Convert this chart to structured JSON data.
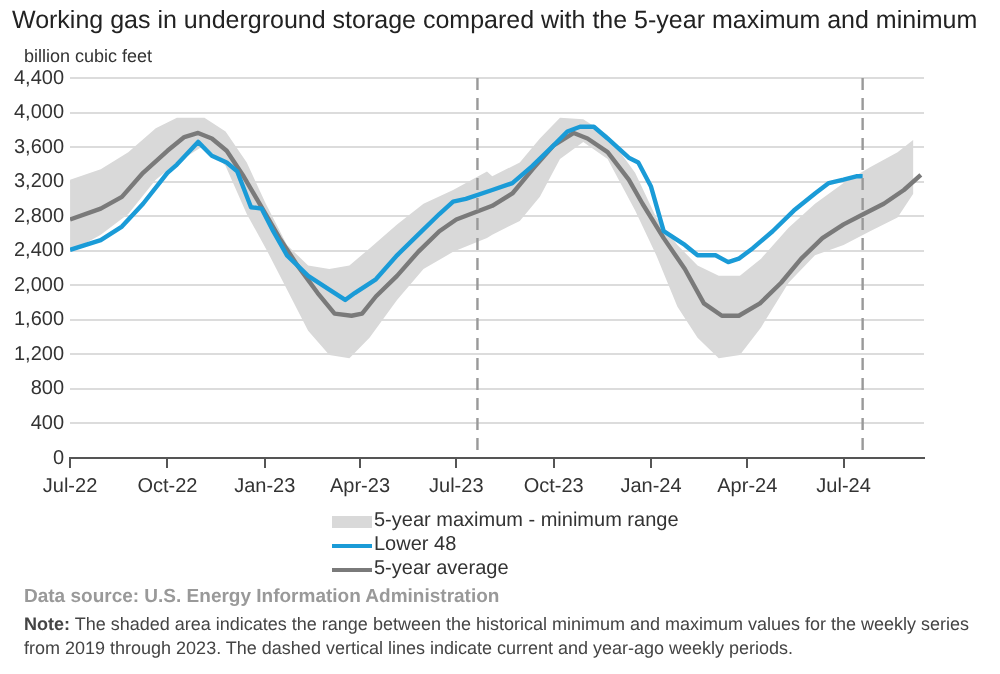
{
  "chart_data": {
    "type": "line",
    "title": "Working gas in underground  storage compared with the 5-year maximum and minimum",
    "ylabel": "billion cubic feet",
    "xlim": [
      "2022-07-01",
      "2024-09-15"
    ],
    "xticks": [
      {
        "value": "2022-07-01",
        "label": "Jul-22"
      },
      {
        "value": "2022-10-01",
        "label": "Oct-22"
      },
      {
        "value": "2023-01-01",
        "label": "Jan-23"
      },
      {
        "value": "2023-04-01",
        "label": "Apr-23"
      },
      {
        "value": "2023-07-01",
        "label": "Jul-23"
      },
      {
        "value": "2023-10-01",
        "label": "Oct-23"
      },
      {
        "value": "2024-01-01",
        "label": "Jan-24"
      },
      {
        "value": "2024-04-01",
        "label": "Apr-24"
      },
      {
        "value": "2024-07-01",
        "label": "Jul-24"
      }
    ],
    "ylim": [
      0,
      4400
    ],
    "yticks": [
      0,
      400,
      800,
      {
        "value": 1200,
        "label": "1,200"
      },
      {
        "value": 1600,
        "label": "1,600"
      },
      {
        "value": 2000,
        "label": "2,000"
      },
      {
        "value": 2400,
        "label": "2,400"
      },
      {
        "value": 2800,
        "label": "2,800"
      },
      {
        "value": 3200,
        "label": "3,200"
      },
      {
        "value": 3600,
        "label": "3,600"
      },
      {
        "value": 4000,
        "label": "4,000"
      },
      {
        "value": 4400,
        "label": "4,400"
      }
    ],
    "grid": "y",
    "legend": "bottom",
    "marker": "none",
    "line_style": "solid",
    "series": [
      {
        "name": "5-year maximum - minimum range",
        "type": "area",
        "color": "#d9d9d9",
        "x": [
          "2022-07-01",
          "2022-07-30",
          "2022-08-25",
          "2022-09-20",
          "2022-10-10",
          "2022-11-05",
          "2022-11-25",
          "2022-12-15",
          "2023-01-02",
          "2023-01-22",
          "2023-02-11",
          "2023-03-03",
          "2023-03-22",
          "2023-04-10",
          "2023-05-06",
          "2023-05-31",
          "2023-06-28",
          "2023-07-30",
          "2023-08-04",
          "2023-08-30",
          "2023-09-18",
          "2023-10-07",
          "2023-10-29",
          "2023-11-21",
          "2023-12-17",
          "2024-01-06",
          "2024-01-26",
          "2024-02-14",
          "2024-03-05",
          "2024-03-25",
          "2024-04-14",
          "2024-05-10",
          "2024-06-04",
          "2024-07-01",
          "2024-07-26",
          "2024-08-21",
          "2024-09-05"
        ],
        "lower": [
          2387,
          2586,
          2825,
          3223,
          3422,
          3620,
          3382,
          2825,
          2427,
          1950,
          1472,
          1194,
          1154,
          1392,
          1830,
          2188,
          2387,
          2546,
          2586,
          2745,
          3024,
          3461,
          3660,
          3461,
          2865,
          2347,
          1751,
          1392,
          1154,
          1194,
          1512,
          2029,
          2347,
          2467,
          2626,
          2785,
          3063
        ],
        "values": [
          null,
          null,
          null,
          null,
          null,
          null,
          null,
          null,
          null,
          null,
          null,
          null,
          null,
          null,
          null,
          null,
          null,
          null,
          null,
          null,
          null,
          null,
          null,
          null,
          null,
          null,
          null,
          null,
          null,
          null,
          null,
          null,
          null,
          null,
          null,
          null,
          null
        ],
        "upper": [
          3223,
          3342,
          3541,
          3819,
          3939,
          3939,
          3780,
          3422,
          2944,
          2467,
          2228,
          2188,
          2228,
          2427,
          2705,
          2944,
          3103,
          3318,
          3262,
          3422,
          3700,
          3939,
          3923,
          3740,
          3302,
          2785,
          2467,
          2228,
          2109,
          2109,
          2308,
          2665,
          2944,
          3183,
          3366,
          3541,
          3684
        ]
      },
      {
        "name": "Lower 48",
        "color": "#1a9bd7",
        "x": [
          "2022-07-01",
          "2022-07-30",
          "2022-08-19",
          "2022-09-08",
          "2022-10-01",
          "2022-10-10",
          "2022-10-30",
          "2022-11-12",
          "2022-11-26",
          "2022-12-06",
          "2022-12-19",
          "2022-12-29",
          "2023-01-09",
          "2023-01-22",
          "2023-02-11",
          "2023-03-03",
          "2023-03-18",
          "2023-03-27",
          "2023-04-16",
          "2023-05-06",
          "2023-05-26",
          "2023-06-15",
          "2023-06-28",
          "2023-07-10",
          "2023-08-04",
          "2023-08-23",
          "2023-09-11",
          "2023-10-01",
          "2023-10-14",
          "2023-10-26",
          "2023-11-08",
          "2023-11-21",
          "2023-12-11",
          "2023-12-20",
          "2024-01-01",
          "2024-01-13",
          "2024-02-02",
          "2024-02-14",
          "2024-03-02",
          "2024-03-14",
          "2024-03-24",
          "2024-04-06",
          "2024-04-25",
          "2024-05-15",
          "2024-06-04",
          "2024-06-17",
          "2024-07-01",
          "2024-07-13",
          "2024-07-19"
        ],
        "values": [
          2411,
          2522,
          2680,
          2944,
          3302,
          3398,
          3660,
          3500,
          3422,
          3318,
          2904,
          2888,
          2626,
          2347,
          2108,
          1950,
          1830,
          1910,
          2069,
          2347,
          2586,
          2825,
          2968,
          3000,
          3103,
          3183,
          3382,
          3620,
          3780,
          3835,
          3835,
          3700,
          3477,
          3422,
          3143,
          2626,
          2467,
          2347,
          2347,
          2268,
          2308,
          2427,
          2626,
          2865,
          3063,
          3183,
          3223,
          3262,
          3262
        ]
      },
      {
        "name": "5-year average",
        "color": "#7a7a7a",
        "x": [
          "2022-07-01",
          "2022-07-30",
          "2022-08-19",
          "2022-09-08",
          "2022-10-01",
          "2022-10-17",
          "2022-10-30",
          "2022-11-12",
          "2022-11-26",
          "2022-12-12",
          "2022-12-29",
          "2023-01-15",
          "2023-02-01",
          "2023-02-20",
          "2023-03-08",
          "2023-03-24",
          "2023-04-03",
          "2023-04-16",
          "2023-05-06",
          "2023-05-26",
          "2023-06-15",
          "2023-07-01",
          "2023-08-04",
          "2023-08-23",
          "2023-09-11",
          "2023-10-01",
          "2023-10-20",
          "2023-11-02",
          "2023-11-21",
          "2023-12-11",
          "2023-12-24",
          "2024-01-13",
          "2024-02-02",
          "2024-02-20",
          "2024-03-08",
          "2024-03-24",
          "2024-04-13",
          "2024-05-03",
          "2024-05-22",
          "2024-06-11",
          "2024-07-01",
          "2024-07-20",
          "2024-08-08",
          "2024-08-27",
          "2024-09-12"
        ],
        "values": [
          2761,
          2888,
          3024,
          3302,
          3557,
          3716,
          3764,
          3700,
          3557,
          3262,
          2904,
          2546,
          2228,
          1910,
          1671,
          1647,
          1671,
          1870,
          2109,
          2387,
          2626,
          2761,
          2920,
          3063,
          3342,
          3620,
          3764,
          3700,
          3541,
          3223,
          2944,
          2546,
          2188,
          1790,
          1647,
          1647,
          1790,
          2029,
          2308,
          2546,
          2705,
          2825,
          2944,
          3103,
          3278
        ]
      }
    ],
    "ref_lines": [
      {
        "axis": "x",
        "value": "2023-07-21",
        "color": "#999999",
        "line_style": "dashed"
      },
      {
        "axis": "x",
        "value": "2024-07-19",
        "color": "#999999",
        "line_style": "dashed"
      }
    ],
    "annotations": [
      "Data source: U.S. Energy Information Administration",
      "Note: The shaded area indicates the range between the historical minimum and maximum values for the weekly series from 2019 through 2023. The dashed vertical lines indicate current and year-ago weekly periods."
    ]
  }
}
